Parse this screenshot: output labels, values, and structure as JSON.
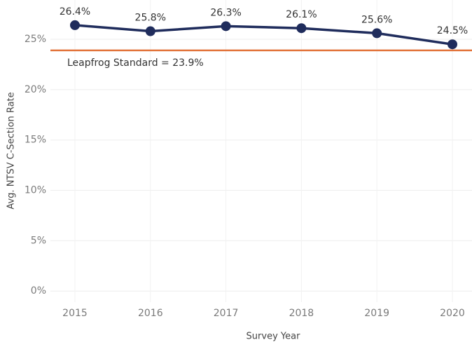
{
  "chart_data": {
    "type": "line",
    "categories": [
      "2015",
      "2016",
      "2017",
      "2018",
      "2019",
      "2020"
    ],
    "values": [
      26.4,
      25.8,
      26.3,
      26.1,
      25.6,
      24.5
    ],
    "value_labels": [
      "26.4%",
      "25.8%",
      "26.3%",
      "26.1%",
      "25.6%",
      "24.5%"
    ],
    "color": "#1f2c5c",
    "x_label": "Survey Year",
    "y_label": "Avg. NTSV C-Section Rate",
    "ylim": [
      -1.1,
      28.9
    ],
    "yticks": [
      {
        "value": 0,
        "label": "0%"
      },
      {
        "value": 5,
        "label": "5%"
      },
      {
        "value": 10,
        "label": "10%"
      },
      {
        "value": 15,
        "label": "15%"
      },
      {
        "value": 20,
        "label": "20%"
      },
      {
        "value": 25,
        "label": "25%"
      }
    ],
    "grid": true,
    "reference_line": {
      "value": 23.9,
      "label": "Leapfrog Standard = 23.9%",
      "color": "#e2733a"
    }
  }
}
